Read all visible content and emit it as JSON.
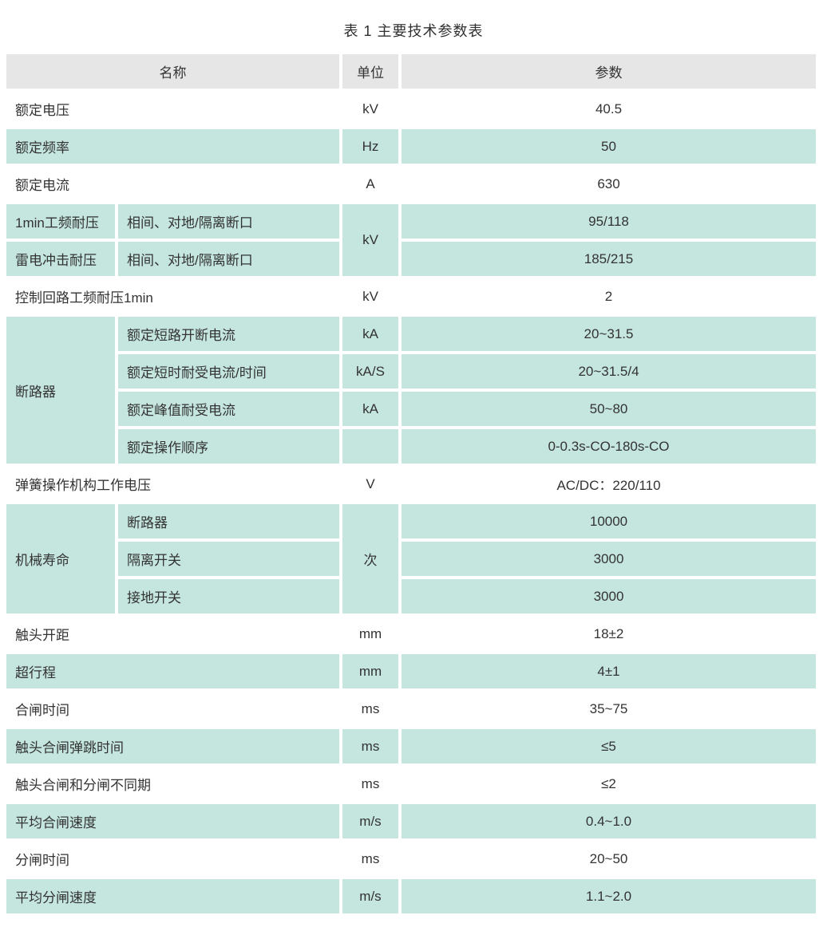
{
  "page_title": "表 1 主要技术参数表",
  "colors": {
    "row_tint": "#c5e5df",
    "header_bg": "#e6e6e6",
    "text_color": "#333333"
  },
  "table": {
    "header": {
      "name": "名称",
      "unit": "单位",
      "param": "参数"
    },
    "basic": [
      {
        "name": "额定电压",
        "unit": "kV",
        "param": "40.5"
      },
      {
        "name": "额定频率",
        "unit": "Hz",
        "param": "50"
      },
      {
        "name": "额定电流",
        "unit": "A",
        "param": "630"
      }
    ],
    "withstand": {
      "unit": "kV",
      "rows": [
        {
          "name": "1min工频耐压",
          "scope": "相间、对地/隔离断口",
          "param": "95/118"
        },
        {
          "name": "雷电冲击耐压",
          "scope": "相间、对地/隔离断口",
          "param": "185/215"
        }
      ]
    },
    "control": {
      "name": "控制回路工频耐压1min",
      "unit": "kV",
      "param": "2"
    },
    "breaker": {
      "name": "断路器",
      "rows": [
        {
          "item": "额定短路开断电流",
          "unit": "kA",
          "param": "20~31.5"
        },
        {
          "item": "额定短时耐受电流/时间",
          "unit": "kA/S",
          "param": "20~31.5/4"
        },
        {
          "item": "额定峰值耐受电流",
          "unit": "kA",
          "param": "50~80"
        },
        {
          "item": "额定操作顺序",
          "unit": "",
          "param": "0-0.3s-CO-180s-CO"
        }
      ]
    },
    "spring": {
      "name": "弹簧操作机构工作电压",
      "unit": "V",
      "param": "AC/DC：220/110"
    },
    "mech_life": {
      "name": "机械寿命",
      "unit": "次",
      "rows": [
        {
          "item": "断路器",
          "param": "10000"
        },
        {
          "item": "隔离开关",
          "param": "3000"
        },
        {
          "item": "接地开关",
          "param": "3000"
        }
      ]
    },
    "timing": [
      {
        "name": "触头开距",
        "unit": "mm",
        "param": "18±2"
      },
      {
        "name": "超行程",
        "unit": "mm",
        "param": "4±1"
      },
      {
        "name": "合闸时间",
        "unit": "ms",
        "param": "35~75"
      },
      {
        "name": "触头合闸弹跳时间",
        "unit": "ms",
        "param": "≤5"
      },
      {
        "name": "触头合闸和分闸不同期",
        "unit": "ms",
        "param": "≤2"
      },
      {
        "name": "平均合闸速度",
        "unit": "m/s",
        "param": "0.4~1.0"
      },
      {
        "name": "分闸时间",
        "unit": "ms",
        "param": "20~50"
      },
      {
        "name": "平均分闸速度",
        "unit": "m/s",
        "param": "1.1~2.0"
      }
    ]
  }
}
